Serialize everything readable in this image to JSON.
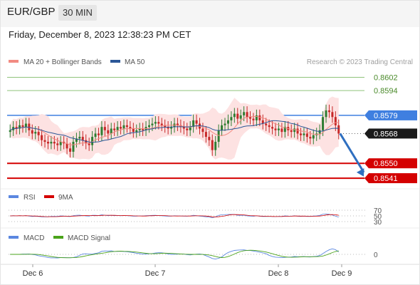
{
  "header": {
    "pair": "EUR/GBP",
    "timeframe": "30 MIN",
    "datetime": "Friday, December 8, 2023 12:38:23 PM CET"
  },
  "colors": {
    "ma20": "#f28b82",
    "ma50": "#2b5797",
    "band_fill": "#fde2e2",
    "resistance": "#8fc37a",
    "pivot": "#3f7fe0",
    "support": "#d40000",
    "up": "#2e7d32",
    "down": "#c62828",
    "arrow": "#2f6fc0",
    "rsi": "#5b87e0",
    "ma9": "#d40000",
    "macd": "#5b87e0",
    "macd_signal": "#4aa31a"
  },
  "chart_data": [
    {
      "type": "candlestick",
      "legend": [
        "MA 20 + Bollinger Bands",
        "MA 50"
      ],
      "legend_position": "top-left",
      "watermark": "Research © 2023 Trading Central",
      "ylim": [
        0.8535,
        0.861
      ],
      "x_labels": [
        "Dec 6",
        "Dec 7",
        "Dec 8",
        "Dec 9"
      ],
      "current_price": 0.8568,
      "levels": [
        {
          "label": "0.8602",
          "value": 0.8602,
          "kind": "resistance"
        },
        {
          "label": "0.8594",
          "value": 0.8594,
          "kind": "resistance"
        },
        {
          "label": "0.8579",
          "value": 0.8579,
          "kind": "pivot"
        },
        {
          "label": "0.8568",
          "value": 0.8568,
          "kind": "last"
        },
        {
          "label": "0.8550",
          "value": 0.855,
          "kind": "support"
        },
        {
          "label": "0.8541",
          "value": 0.8541,
          "kind": "support"
        }
      ],
      "close": [
        0.857,
        0.8572,
        0.8571,
        0.8573,
        0.8572,
        0.8574,
        0.857,
        0.8568,
        0.8569,
        0.8567,
        0.8564,
        0.8563,
        0.8562,
        0.8563,
        0.8562,
        0.8561,
        0.8563,
        0.8562,
        0.8559,
        0.8557,
        0.8563,
        0.8565,
        0.8566,
        0.8564,
        0.8562,
        0.8561,
        0.8566,
        0.8568,
        0.8567,
        0.8572,
        0.857,
        0.8568,
        0.8571,
        0.857,
        0.8572,
        0.8571,
        0.8573,
        0.8572,
        0.8571,
        0.8569,
        0.857,
        0.8571,
        0.857,
        0.8572,
        0.8573,
        0.8574,
        0.8575,
        0.8574,
        0.8573,
        0.8572,
        0.8571,
        0.8572,
        0.8574,
        0.8573,
        0.8572,
        0.8571,
        0.857,
        0.8572,
        0.8576,
        0.8574,
        0.8571,
        0.8569,
        0.8566,
        0.8564,
        0.8558,
        0.8563,
        0.857,
        0.8573,
        0.8574,
        0.8576,
        0.8578,
        0.858,
        0.8577,
        0.8579,
        0.8581,
        0.8578,
        0.8577,
        0.8576,
        0.8579,
        0.8576,
        0.8574,
        0.8573,
        0.8572,
        0.8571,
        0.857,
        0.8571,
        0.8569,
        0.8572,
        0.857,
        0.8569,
        0.8571,
        0.8568,
        0.8567,
        0.8568,
        0.8566,
        0.8565,
        0.8567,
        0.8568,
        0.857,
        0.8578,
        0.8582,
        0.8581,
        0.8578,
        0.8573,
        0.8568
      ],
      "sub_panels": [
        {
          "name": "RSI",
          "overlay": "9MA",
          "levels": [
            "70",
            "50",
            "30"
          ]
        },
        {
          "name": "MACD",
          "overlay": "MACD Signal",
          "levels": [
            "0"
          ]
        }
      ]
    }
  ]
}
